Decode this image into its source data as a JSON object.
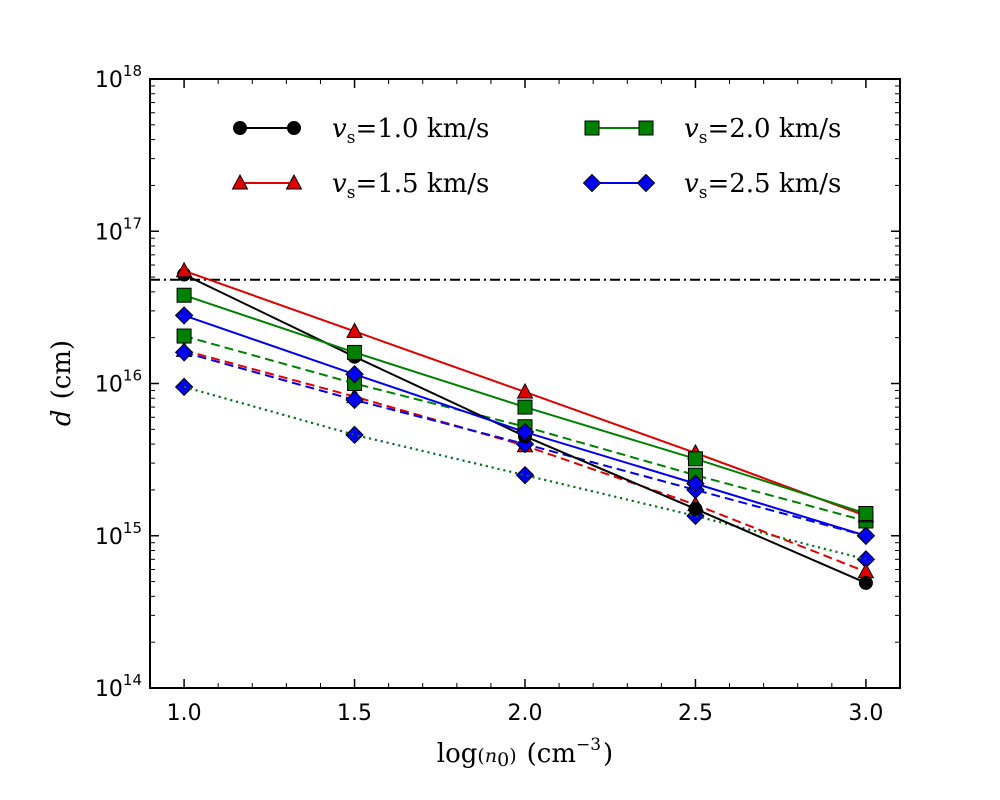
{
  "chart_data": {
    "type": "line",
    "xlabel": {
      "pre": "log",
      "paren_open": "(",
      "var": "n",
      "sub": "0",
      "paren_close": ")",
      "unit_pre": "(cm",
      "unit_exp": "−3",
      "unit_post": ")"
    },
    "ylabel": {
      "var": "d",
      "unit": "(cm)"
    },
    "xlim": [
      0.9,
      3.1
    ],
    "ylim_log10": [
      14,
      18
    ],
    "y_scale": "log",
    "x_ticks": [
      "1.0",
      "1.5",
      "2.0",
      "2.5",
      "3.0"
    ],
    "x_tick_values": [
      1.0,
      1.5,
      2.0,
      2.5,
      3.0
    ],
    "y_ticks": [
      {
        "base": "10",
        "exp": "14",
        "value": 14
      },
      {
        "base": "10",
        "exp": "15",
        "value": 15
      },
      {
        "base": "10",
        "exp": "16",
        "value": 16
      },
      {
        "base": "10",
        "exp": "17",
        "value": 17
      },
      {
        "base": "10",
        "exp": "18",
        "value": 18
      }
    ],
    "x": [
      1.0,
      1.5,
      2.0,
      2.5,
      3.0
    ],
    "reference_line": {
      "y": 4.8e+16,
      "style": "dashdot",
      "color": "#000000"
    },
    "legend_position": "top",
    "series": [
      {
        "name_var": "v",
        "name_sub": "s",
        "name_val": "=1.0 km/s",
        "color": "#000000",
        "marker": "circle",
        "style": "solid",
        "values": [
          5.2e+16,
          1.5e+16,
          4500000000000000.0,
          1500000000000000.0,
          490000000000000.0
        ],
        "in_legend": true
      },
      {
        "name_var": "v",
        "name_sub": "s",
        "name_val": "=1.5 km/s",
        "color": "#e00000",
        "marker": "triangle",
        "style": "solid",
        "values": [
          5.5e+16,
          2.2e+16,
          8800000000000000.0,
          3500000000000000.0,
          1350000000000000.0
        ],
        "in_legend": true
      },
      {
        "name_var": "v",
        "name_sub": "s",
        "name_val": "=2.0 km/s",
        "color": "#008000",
        "marker": "square",
        "style": "solid",
        "values": [
          3.8e+16,
          1.6e+16,
          7000000000000000.0,
          3200000000000000.0,
          1400000000000000.0
        ],
        "in_legend": true
      },
      {
        "name_var": "v",
        "name_sub": "s",
        "name_val": "=2.5 km/s",
        "color": "#0000ee",
        "marker": "diamond",
        "style": "solid",
        "values": [
          2.8e+16,
          1.15e+16,
          4800000000000000.0,
          2200000000000000.0,
          1000000000000000.0
        ],
        "in_legend": true
      },
      {
        "color": "#e00000",
        "marker": "triangle",
        "style": "dashed",
        "values": [
          1.65e+16,
          8200000000000000.0,
          3900000000000000.0,
          1600000000000000.0,
          580000000000000.0
        ],
        "in_legend": false
      },
      {
        "color": "#008000",
        "marker": "square",
        "style": "dashed",
        "values": [
          2.05e+16,
          1e+16,
          5200000000000000.0,
          2500000000000000.0,
          1250000000000000.0
        ],
        "in_legend": false
      },
      {
        "color": "#0000ee",
        "marker": "diamond",
        "style": "dashed",
        "values": [
          1.6e+16,
          7800000000000000.0,
          4000000000000000.0,
          2000000000000000.0,
          1000000000000000.0
        ],
        "in_legend": false
      },
      {
        "color": "#0000ee",
        "marker": "diamond",
        "style": "dotted",
        "values": [
          9500000000000000.0,
          4600000000000000.0,
          2500000000000000.0,
          1350000000000000.0,
          700000000000000.0
        ],
        "in_legend": false
      },
      {
        "color": "#008000",
        "marker": "none",
        "style": "dotted",
        "values": [
          9500000000000000.0,
          4600000000000000.0,
          2500000000000000.0,
          1350000000000000.0,
          700000000000000.0
        ],
        "in_legend": false
      }
    ]
  }
}
